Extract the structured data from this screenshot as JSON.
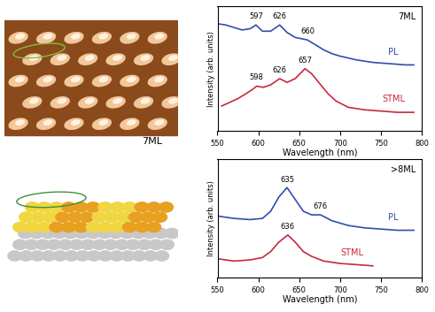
{
  "image_labels": [
    "7ML"
  ],
  "chart_data": [
    {
      "type": "line",
      "panel_label": "7ML",
      "xlabel": "Wavelength (nm)",
      "ylabel": "Intensity (arb. units)",
      "xlim": [
        550,
        800
      ],
      "xticks": [
        550,
        600,
        650,
        700,
        750,
        800
      ],
      "ylim": [
        0,
        10
      ],
      "yticks": [],
      "tick_labels": "x",
      "series": [
        {
          "name": "PL",
          "color": "#2f4fa8",
          "x": [
            550,
            560,
            570,
            580,
            590,
            597,
            605,
            615,
            626,
            635,
            645,
            660,
            670,
            680,
            690,
            700,
            720,
            740,
            760,
            780,
            790
          ],
          "values": [
            8.6,
            8.5,
            8.3,
            8.1,
            8.2,
            8.5,
            8.0,
            8.0,
            8.5,
            7.9,
            7.5,
            7.3,
            6.9,
            6.5,
            6.2,
            6.0,
            5.7,
            5.5,
            5.4,
            5.3,
            5.3
          ],
          "peaks": [
            597,
            626,
            660
          ]
        },
        {
          "name": "STML",
          "color": "#c8283c",
          "x": [
            555,
            565,
            575,
            585,
            592,
            598,
            606,
            615,
            626,
            635,
            645,
            657,
            665,
            675,
            685,
            695,
            710,
            730,
            750,
            770,
            790
          ],
          "values": [
            2.0,
            2.3,
            2.6,
            3.0,
            3.3,
            3.6,
            3.5,
            3.7,
            4.2,
            3.9,
            4.2,
            5.0,
            4.6,
            3.8,
            3.0,
            2.4,
            1.9,
            1.7,
            1.6,
            1.5,
            1.5
          ],
          "peaks": [
            598,
            626,
            657
          ]
        }
      ]
    },
    {
      "type": "line",
      "panel_label": ">8ML",
      "xlabel": "Wavelength (nm)",
      "ylabel": "Intensity (arb. units)",
      "xlim": [
        550,
        800
      ],
      "xticks": [
        550,
        600,
        650,
        700,
        750,
        800
      ],
      "ylim": [
        0,
        10
      ],
      "yticks": [],
      "tick_labels": "x",
      "series": [
        {
          "name": "PL",
          "color": "#2f4fa8",
          "x": [
            550,
            570,
            590,
            605,
            615,
            625,
            635,
            645,
            655,
            665,
            676,
            690,
            710,
            730,
            750,
            770,
            790
          ],
          "values": [
            5.2,
            5.0,
            4.9,
            5.0,
            5.6,
            6.8,
            7.6,
            6.6,
            5.6,
            5.3,
            5.3,
            4.8,
            4.4,
            4.2,
            4.1,
            4.0,
            4.0
          ],
          "peaks": [
            635,
            676
          ]
        },
        {
          "name": "STML",
          "color": "#c8283c",
          "x": [
            550,
            570,
            590,
            605,
            615,
            625,
            636,
            645,
            655,
            665,
            680,
            700,
            720,
            740
          ],
          "values": [
            1.6,
            1.4,
            1.5,
            1.7,
            2.2,
            3.0,
            3.6,
            3.0,
            2.2,
            1.8,
            1.4,
            1.2,
            1.1,
            1.0
          ],
          "peaks": [
            636
          ]
        }
      ]
    }
  ]
}
